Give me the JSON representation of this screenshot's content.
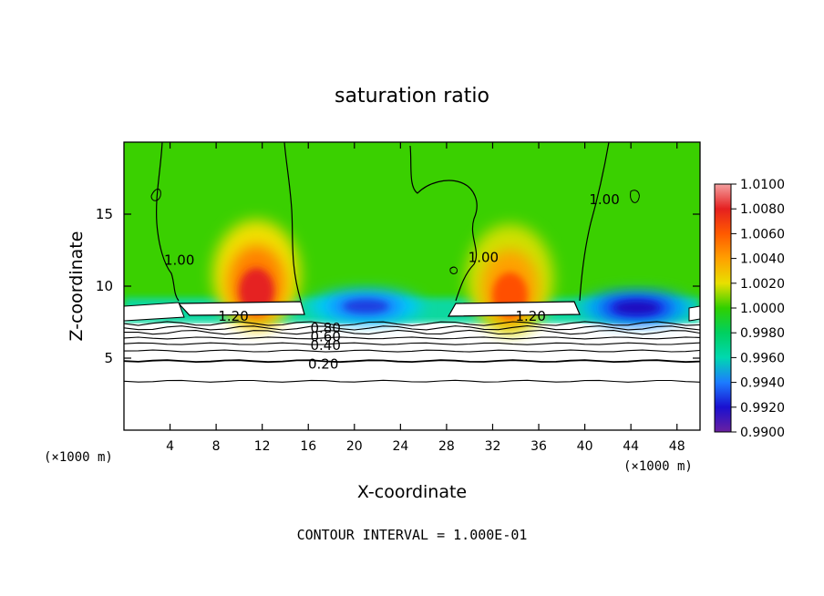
{
  "chart_data": {
    "type": "heatmap",
    "title": "saturation ratio",
    "xlabel": "X-coordinate",
    "ylabel": "Z-coordinate",
    "x_unit_left": "(×1000 m)",
    "x_unit_right": "(×1000 m)",
    "footer": "CONTOUR INTERVAL = 1.000E-01",
    "xlim": [
      0,
      50
    ],
    "ylim": [
      0,
      20
    ],
    "x_ticks": [
      4,
      8,
      12,
      16,
      20,
      24,
      28,
      32,
      36,
      40,
      44,
      48
    ],
    "y_ticks": [
      5,
      10,
      15
    ],
    "colorbar": {
      "ticks": [
        "1.0100",
        "1.0080",
        "1.0060",
        "1.0040",
        "1.0020",
        "1.0000",
        "0.9980",
        "0.9960",
        "0.9940",
        "0.9920",
        "0.9900"
      ],
      "colors": [
        "#f28a8a",
        "#e52020",
        "#ff6a00",
        "#ffaa00",
        "#f0e000",
        "#55d400",
        "#00d000",
        "#00d890",
        "#1c9bff",
        "#1a28e8",
        "#2000a0",
        "#7030a0"
      ]
    },
    "contour_labels": [
      {
        "text": "1.00",
        "x": 4.8,
        "y": 11.8
      },
      {
        "text": "1.20",
        "x": 9.5,
        "y": 7.9
      },
      {
        "text": "0.80",
        "x": 17.5,
        "y": 7.1
      },
      {
        "text": "0.60",
        "x": 17.5,
        "y": 6.5
      },
      {
        "text": "0.40",
        "x": 17.5,
        "y": 5.9
      },
      {
        "text": "0.20",
        "x": 17.3,
        "y": 4.6
      },
      {
        "text": "1.00",
        "x": 31.2,
        "y": 12.0
      },
      {
        "text": "1.20",
        "x": 35.3,
        "y": 7.9
      },
      {
        "text": "1.00",
        "x": 41.7,
        "y": 16.0
      }
    ],
    "contour_levels_z": [
      3.4,
      4.8,
      5.5,
      6.0,
      6.4,
      6.8,
      7.1,
      7.4
    ],
    "hotspots": [
      {
        "x": 11.5,
        "y": 10.8,
        "value": 1.008
      },
      {
        "x": 33.5,
        "y": 10.5,
        "value": 1.004
      },
      {
        "x": 21.0,
        "y": 8.6,
        "value": 0.993
      },
      {
        "x": 44.5,
        "y": 8.5,
        "value": 0.992
      }
    ]
  }
}
